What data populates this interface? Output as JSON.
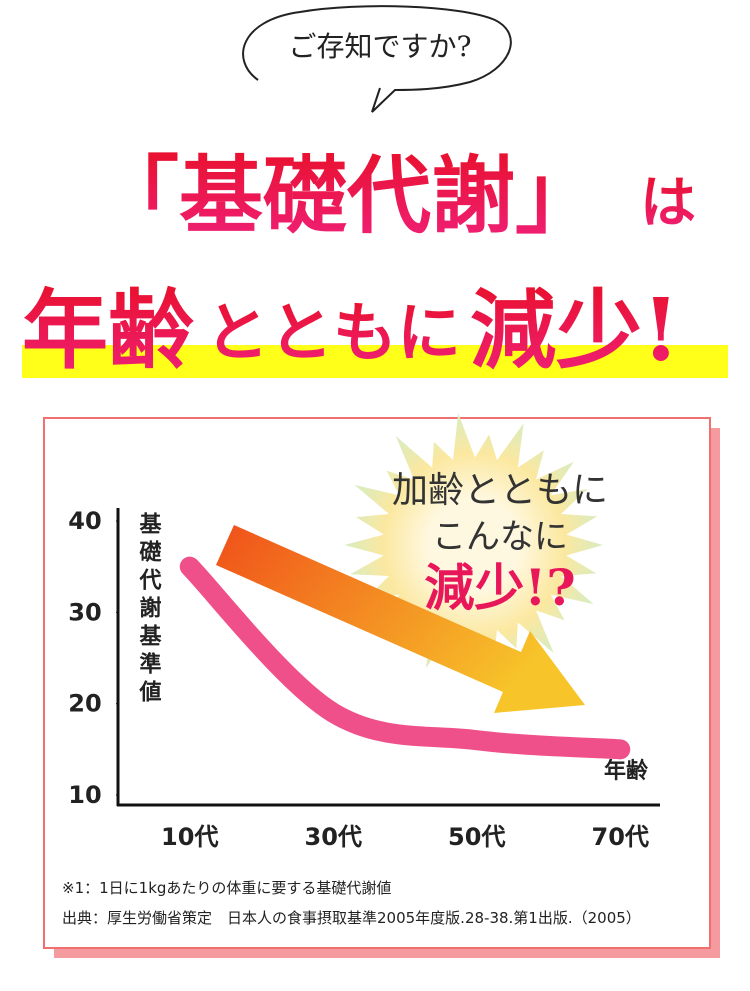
{
  "header": {
    "bubble": "ご存知ですか?",
    "line1_main": "「基礎代謝」",
    "line1_particle": "は",
    "line2_a": "年齢",
    "line2_b": "とともに",
    "line2_c": "減少!"
  },
  "chart_data": {
    "type": "line",
    "y_label": "基礎代謝基準値",
    "x_label": "年齢",
    "categories": [
      "10代",
      "30代",
      "50代",
      "70代"
    ],
    "values": [
      35,
      19,
      16,
      15
    ],
    "color": "#f0508a",
    "ylim": [
      10,
      40
    ],
    "yticks": [
      10,
      20,
      30,
      40
    ],
    "annotation": [
      "加齢とともに",
      "こんなに",
      "減少!?"
    ],
    "notes": [
      "※1：1日に1kgあたりの体重に要する基礎代謝値",
      "出典：厚生労働省策定　日本人の食事摂取基準2005年度版.28-38.第1出版.（2005）"
    ]
  }
}
